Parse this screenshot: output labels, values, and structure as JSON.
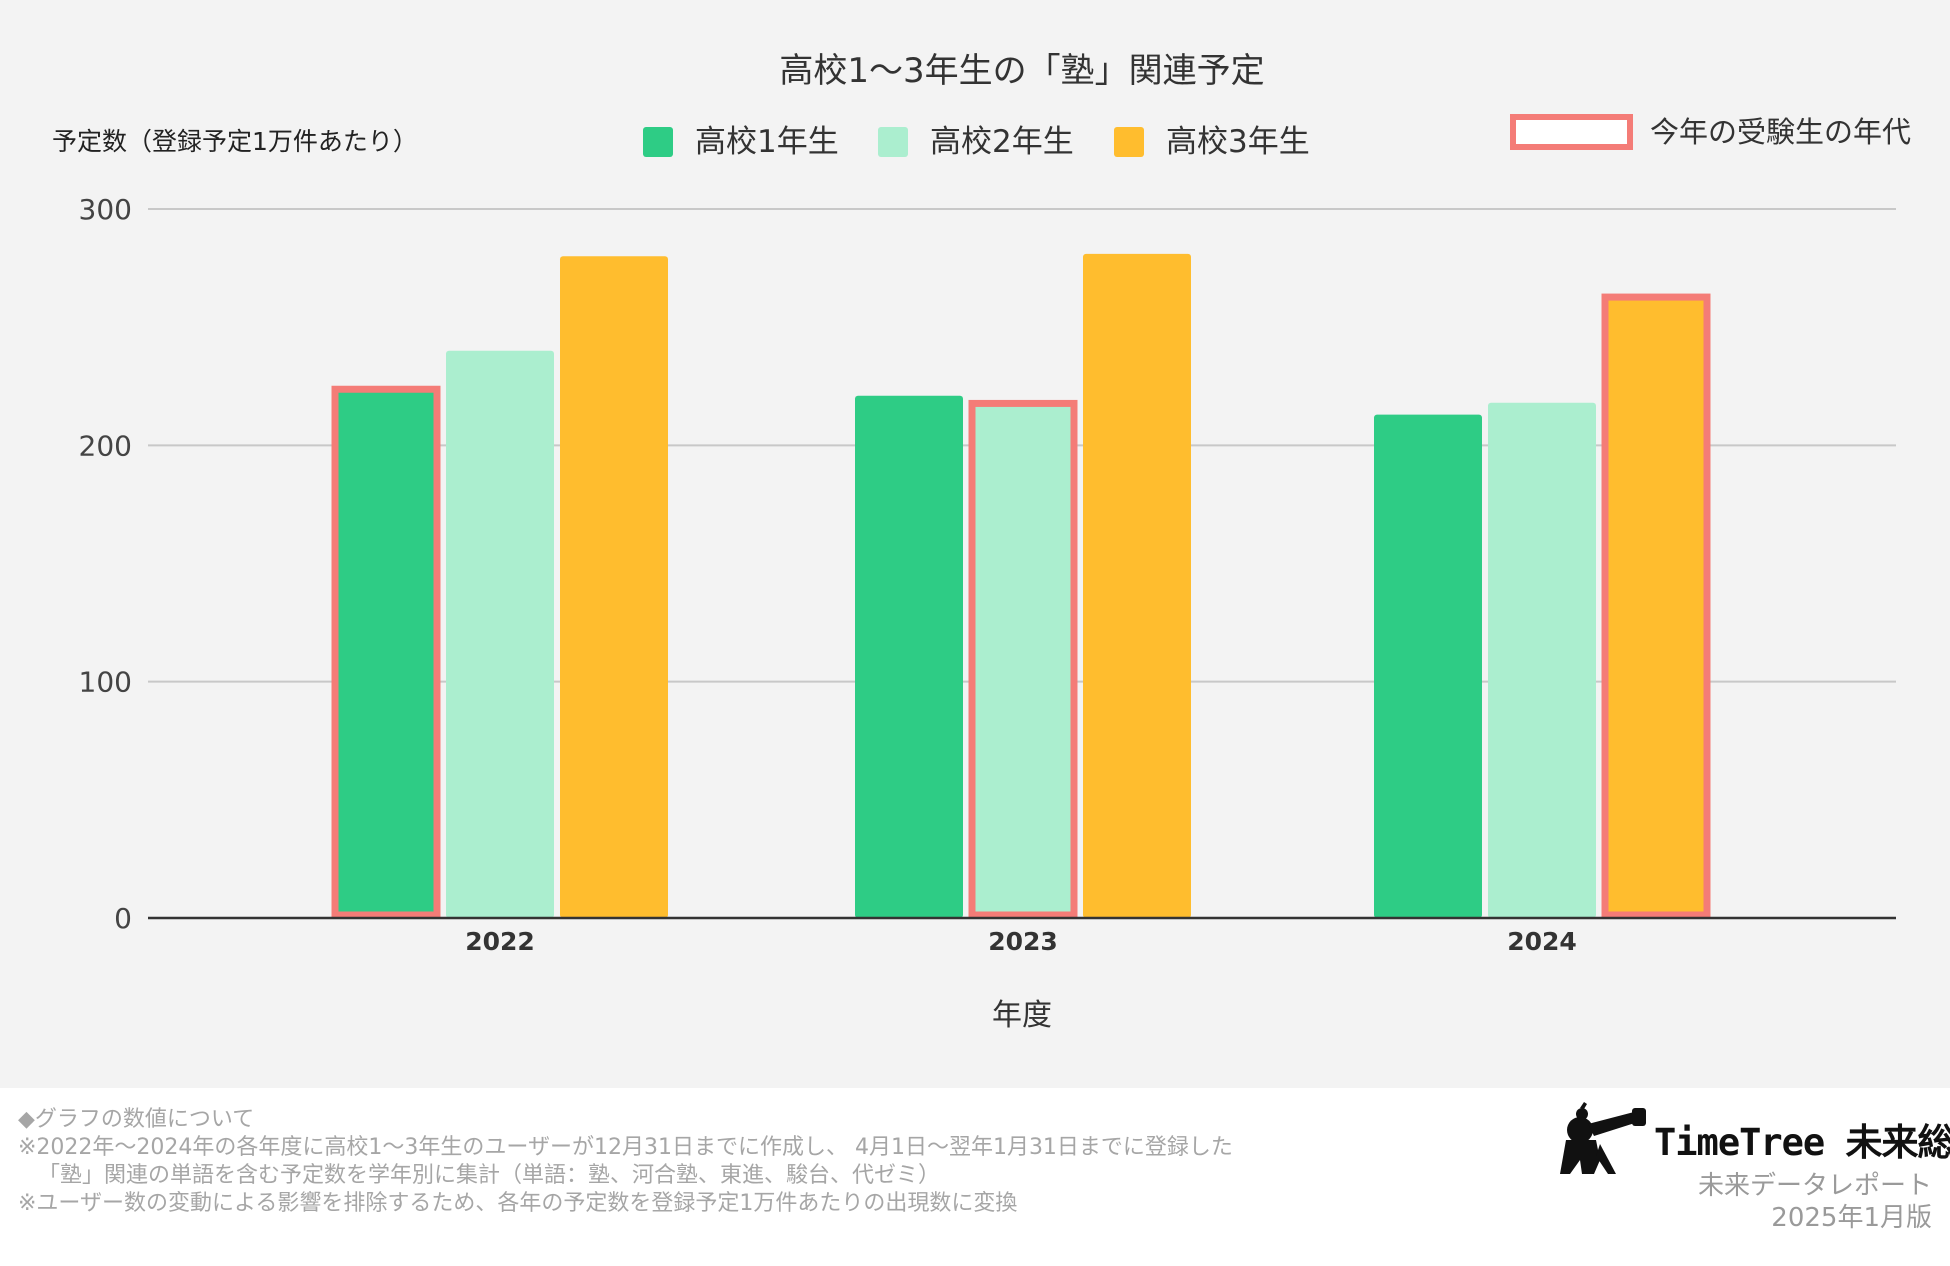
{
  "chart_data": {
    "type": "bar",
    "title": "高校1〜3年生の「塾」関連予定",
    "ylabel": "予定数（登録予定1万件あたり）",
    "xlabel": "年度",
    "categories": [
      "2022",
      "2023",
      "2024"
    ],
    "series": [
      {
        "name": "高校1年生",
        "color": "#2ecc85",
        "values": [
          225,
          221,
          213
        ]
      },
      {
        "name": "高校2年生",
        "color": "#abeecf",
        "values": [
          240,
          219,
          218
        ]
      },
      {
        "name": "高校3年生",
        "color": "#ffbd2e",
        "values": [
          280,
          281,
          264
        ]
      }
    ],
    "highlight": {
      "label": "今年の受験生の年代",
      "color": "#f47c77",
      "cells": [
        {
          "category": 0,
          "series": 0
        },
        {
          "category": 1,
          "series": 1
        },
        {
          "category": 2,
          "series": 2
        }
      ]
    },
    "ylim": [
      0,
      300
    ],
    "yticks": [
      0,
      100,
      200,
      300
    ],
    "grid": true,
    "legend_position": "top"
  },
  "notes": {
    "heading": "◆グラフの数値について",
    "line1": "※2022年〜2024年の各年度に高校1〜3年生のユーザーが12月31日までに作成し、 4月1日〜翌年1月31日までに登録した",
    "line2": "「塾」関連の単語を含む予定数を学年別に集計（単語：塾、河合塾、東進、駿台、代ゼミ）",
    "line3": "※ユーザー数の変動による影響を排除するため、各年の予定数を登録予定1万件あたりの出現数に変換"
  },
  "brand": {
    "name": "TimeTree 未来総研",
    "report": "未来データレポート",
    "edition": "2025年1月版"
  }
}
